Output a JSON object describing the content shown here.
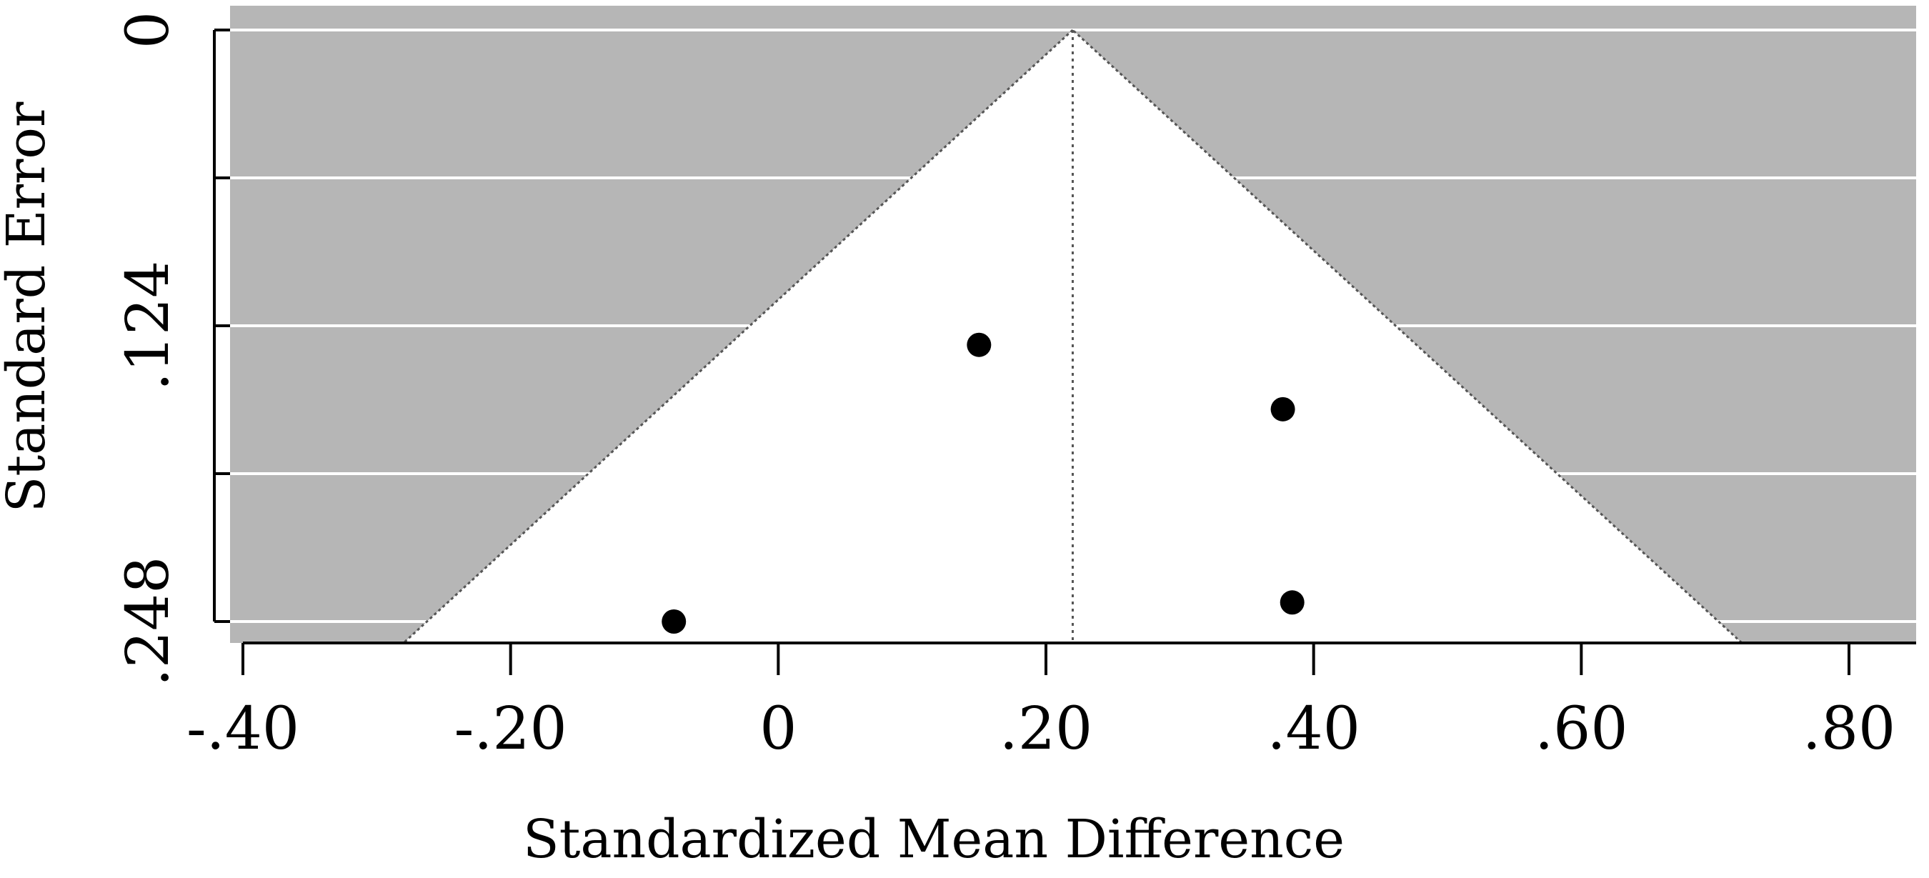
{
  "chart_data": {
    "type": "scatter",
    "subtype": "funnel plot",
    "title": "",
    "xlabel": "Standardized Mean Difference",
    "ylabel": "Standard Error",
    "xlim": [
      -0.42,
      0.84
    ],
    "ylim": [
      0,
      0.256
    ],
    "y_inverted": true,
    "x_ticks": [
      -0.4,
      -0.2,
      0,
      0.2,
      0.4,
      0.6,
      0.8
    ],
    "x_tick_labels": [
      "-.40",
      "-.20",
      "0",
      ".20",
      ".40",
      ".60",
      ".80"
    ],
    "y_ticks": [
      0,
      0.062,
      0.124,
      0.186,
      0.248
    ],
    "y_tick_labels": [
      "0",
      "",
      ".124",
      "",
      ".248"
    ],
    "pooled_effect": 0.22,
    "funnel": {
      "apex": [
        0.22,
        0
      ],
      "left_base": [
        -0.28,
        0.256
      ],
      "right_base": [
        0.72,
        0.256
      ]
    },
    "points": [
      {
        "x": 0.15,
        "y": 0.132
      },
      {
        "x": 0.377,
        "y": 0.159
      },
      {
        "x": -0.078,
        "y": 0.248
      },
      {
        "x": 0.384,
        "y": 0.24
      }
    ],
    "colors": {
      "outside_funnel": "#b6b6b6",
      "inside_funnel": "#ffffff",
      "gridline": "#ffffff",
      "points": "#000000",
      "funnel_line": "#555555"
    },
    "grid": true,
    "legend": "none"
  }
}
